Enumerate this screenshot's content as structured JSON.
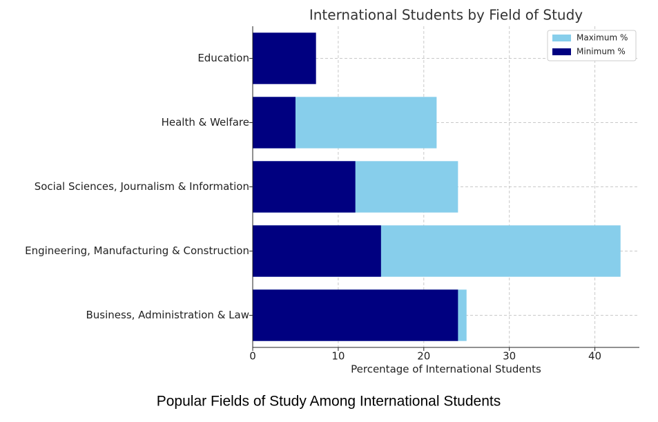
{
  "chart_data": {
    "type": "bar",
    "orientation": "horizontal",
    "overlap": true,
    "title": "International Students by Field of Study",
    "xlabel": "Percentage of International Students",
    "caption": "Popular Fields of Study Among International Students",
    "categories": [
      "Education",
      "Health & Welfare",
      "Social Sciences, Journalism & Information",
      "Engineering, Manufacturing & Construction",
      "Business, Administration & Law"
    ],
    "series": [
      {
        "name": "Maximum %",
        "color": "#87ceeb",
        "values": [
          null,
          21.5,
          24,
          43,
          25
        ]
      },
      {
        "name": "Minimum %",
        "color": "#000080",
        "values": [
          7.4,
          5,
          12,
          15,
          24
        ]
      }
    ],
    "xlim": [
      0,
      45.2
    ],
    "xticks": [
      0,
      10,
      20,
      30,
      40
    ],
    "grid": true,
    "legend": "upper right"
  }
}
